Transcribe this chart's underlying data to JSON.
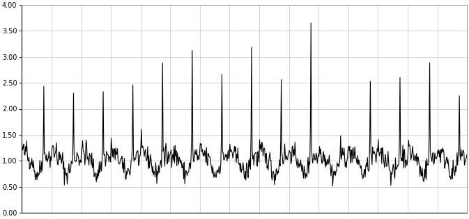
{
  "ylim": [
    0.0,
    4.0
  ],
  "yticks": [
    0.0,
    0.5,
    1.0,
    1.5,
    2.0,
    2.5,
    3.0,
    3.5,
    4.0
  ],
  "ytick_labels": [
    "0.00",
    "0.50",
    "1.00",
    "1.50",
    "2.00",
    "2.50",
    "3.00",
    "3.50",
    "4.00"
  ],
  "line_color": "#000000",
  "line_width": 0.8,
  "bg_color": "#ffffff",
  "grid_color": "#cccccc",
  "n_years": 15,
  "weeks_per_year": 52,
  "sep_peak_week": 38,
  "sep_peaks": [
    2.43,
    2.3,
    2.33,
    2.46,
    2.88,
    3.12,
    2.66,
    3.18,
    2.56,
    3.65,
    1.48,
    2.53,
    2.6,
    2.88,
    2.25
  ],
  "figsize": [
    6.73,
    3.15
  ],
  "dpi": 100
}
